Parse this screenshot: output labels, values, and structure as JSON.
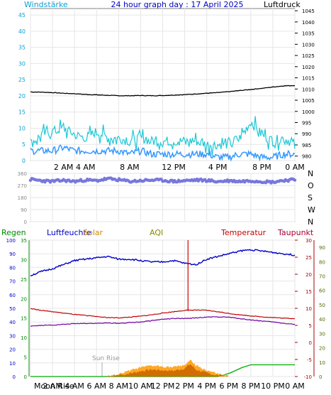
{
  "header": {
    "title": "24 hour graph day : 17 April 2025",
    "left_label": "Windstärke",
    "right_label": "Luftdruck"
  },
  "x_ticks_top": [
    "2 AM",
    "4 AM",
    "8 AM",
    "12 PM",
    "4 PM",
    "8 PM",
    "0 AM"
  ],
  "x_ticks_bottom": [
    "2 AM",
    "4 AM",
    "6 AM",
    "8 AM",
    "10 AM",
    "12 PM",
    "2 PM",
    "4 PM",
    "6 PM",
    "8 PM",
    "10 PM",
    "0 AM"
  ],
  "legend_bottom": {
    "regen": "Regen",
    "luftfeuchte": "Luftfeuchte",
    "solar": "Solar",
    "aqi": "AQI",
    "temperatur": "Temperatur",
    "taupunkt": "Taupunkt",
    "moon": "Moon Rise",
    "sunrise": "Sun Rise"
  },
  "colors": {
    "frame": "#808080",
    "grid": "#e6e6e6",
    "wind_label": "#0e9fd8",
    "pressure": "#000000",
    "gust": "#19c8d8",
    "wind": "#3399ff",
    "direction": "#7777dd",
    "humidity": "#0000c8",
    "temperature": "#c00000",
    "dewpoint": "#7000a0",
    "rain": "#00aa00",
    "solar": "#ff9900",
    "uv": "#cc6600",
    "spike": "#cc0000",
    "regen_axis": "#008800",
    "temp_axis": "#aa0000"
  },
  "chart_data": [
    {
      "type": "line",
      "name": "wind-pressure",
      "x_range_hours": [
        0,
        24
      ],
      "left_axis": {
        "title": "Windstarke",
        "ticks": [
          0,
          5,
          10,
          15,
          20,
          25,
          30,
          35,
          40,
          45
        ],
        "ylim": [
          0,
          47
        ]
      },
      "right_axis": {
        "title": "Luftdruck",
        "ticks": [
          980,
          985,
          990,
          995,
          1000,
          1005,
          1010,
          1015,
          1020,
          1025,
          1030,
          1035,
          1040,
          1045
        ],
        "ylim": [
          978,
          1046
        ]
      },
      "series": [
        {
          "key": "pressure",
          "axis": "right",
          "x": [
            0,
            1,
            2,
            3,
            4,
            5,
            6,
            7,
            8,
            9,
            10,
            11,
            12,
            13,
            14,
            15,
            16,
            17,
            18,
            19,
            20,
            21,
            22,
            23,
            24
          ],
          "values": [
            1008.7,
            1008.6,
            1008.4,
            1008.1,
            1007.9,
            1007.6,
            1007.4,
            1007.2,
            1007.0,
            1007.0,
            1007.1,
            1007.0,
            1007.1,
            1007.3,
            1007.5,
            1007.8,
            1008.1,
            1008.4,
            1008.8,
            1009.3,
            1009.8,
            1010.3,
            1010.9,
            1011.4,
            1011.6
          ]
        },
        {
          "key": "gust",
          "axis": "left",
          "x": [
            0,
            1,
            2,
            3,
            4,
            5,
            6,
            7,
            8,
            9,
            10,
            11,
            12,
            13,
            14,
            15,
            16,
            17,
            18,
            19,
            20,
            21,
            22,
            23,
            24
          ],
          "values": [
            5,
            8,
            9,
            10,
            8,
            7,
            9,
            7,
            7,
            6,
            7,
            6,
            6,
            6,
            6,
            6,
            5,
            5,
            5,
            7,
            12,
            8,
            6,
            7,
            5
          ]
        },
        {
          "key": "wind",
          "axis": "left",
          "x": [
            0,
            1,
            2,
            3,
            4,
            5,
            6,
            7,
            8,
            9,
            10,
            11,
            12,
            13,
            14,
            15,
            16,
            17,
            18,
            19,
            20,
            21,
            22,
            23,
            24
          ],
          "values": [
            3,
            3,
            3,
            4,
            3,
            3,
            3,
            3,
            3,
            2,
            3,
            2,
            2,
            2,
            2,
            2,
            2,
            1,
            1,
            2,
            2,
            1,
            1,
            2,
            2
          ]
        }
      ]
    },
    {
      "type": "scatter",
      "name": "wind-direction",
      "x_range_hours": [
        0,
        24
      ],
      "left_axis": {
        "ticks": [
          0,
          90,
          180,
          270,
          360
        ],
        "ylim": [
          0,
          360
        ]
      },
      "right_axis": {
        "ticks": [
          "N",
          "W",
          "S",
          "O",
          "N"
        ]
      },
      "series": [
        {
          "key": "direction",
          "x": [
            0,
            1,
            2,
            3,
            4,
            5,
            6,
            7,
            8,
            9,
            10,
            11,
            12,
            13,
            14,
            15,
            16,
            17,
            18,
            19,
            20,
            21,
            22,
            23,
            24
          ],
          "values": [
            315,
            305,
            300,
            308,
            300,
            310,
            305,
            320,
            312,
            300,
            305,
            310,
            308,
            300,
            305,
            310,
            308,
            298,
            305,
            300,
            305,
            300,
            295,
            308,
            312
          ]
        }
      ]
    },
    {
      "type": "line",
      "name": "weather-combined",
      "x_range_hours": [
        0,
        24
      ],
      "left_axis_humidity": {
        "ticks": [
          0,
          10,
          20,
          30,
          40,
          50,
          60,
          70,
          80,
          90,
          100
        ],
        "ylim": [
          0,
          100
        ]
      },
      "left_axis_rain": {
        "ticks": [
          0,
          5,
          10,
          15,
          20,
          25,
          30,
          35
        ],
        "ylim": [
          0,
          35
        ]
      },
      "right_axis_temperature": {
        "ticks": [
          -10,
          -5,
          0,
          5,
          10,
          15,
          20,
          25,
          30
        ],
        "ylim": [
          -10,
          30
        ]
      },
      "right_axis_aqi": {
        "ticks": [
          0,
          10,
          20,
          30,
          40,
          50,
          60,
          70,
          80,
          90
        ],
        "ylim": [
          0,
          95
        ]
      },
      "series": [
        {
          "key": "humidity",
          "axis": "humidity",
          "x": [
            0,
            1,
            2,
            3,
            4,
            5,
            6,
            7,
            8,
            9,
            10,
            11,
            12,
            13,
            14,
            15,
            16,
            17,
            18,
            19,
            20,
            21,
            22,
            23,
            24
          ],
          "values": [
            74,
            77,
            79,
            82,
            85,
            86,
            87,
            88,
            86,
            86,
            85,
            84,
            84,
            85,
            83,
            82,
            86,
            88,
            90,
            92,
            93,
            92,
            91,
            90,
            89
          ]
        },
        {
          "key": "temperature",
          "axis": "temperature",
          "x": [
            0,
            1,
            2,
            3,
            4,
            5,
            6,
            7,
            8,
            9,
            10,
            11,
            12,
            13,
            14,
            15,
            16,
            17,
            18,
            19,
            20,
            21,
            22,
            23,
            24
          ],
          "values": [
            10.0,
            9.4,
            9.0,
            8.6,
            8.2,
            7.9,
            7.6,
            7.3,
            7.2,
            7.4,
            7.7,
            8.1,
            8.6,
            9.0,
            9.4,
            9.5,
            9.4,
            9.0,
            8.5,
            8.1,
            7.8,
            7.5,
            7.3,
            7.1,
            7.0
          ]
        },
        {
          "key": "dewpoint",
          "axis": "temperature",
          "x": [
            0,
            1,
            2,
            3,
            4,
            5,
            6,
            7,
            8,
            9,
            10,
            11,
            12,
            13,
            14,
            15,
            16,
            17,
            18,
            19,
            20,
            21,
            22,
            23,
            24
          ],
          "values": [
            4.8,
            5.0,
            5.1,
            5.3,
            5.5,
            5.6,
            5.6,
            5.7,
            5.6,
            5.8,
            6.0,
            6.4,
            6.8,
            7.0,
            7.0,
            7.2,
            7.4,
            7.5,
            7.4,
            7.0,
            6.6,
            6.3,
            6.0,
            5.6,
            5.3
          ]
        },
        {
          "key": "rain",
          "axis": "rain",
          "x": [
            0,
            16,
            17,
            17.6,
            18.2,
            19.2,
            20.0,
            24
          ],
          "values": [
            0,
            0,
            0,
            0.4,
            1.0,
            2.3,
            3.0,
            3.0
          ]
        },
        {
          "key": "solar",
          "axis": "rain",
          "x": [
            0,
            7,
            8,
            9,
            10,
            11,
            12,
            13,
            14,
            14.5,
            15,
            16,
            17,
            18,
            24
          ],
          "values": [
            0,
            0,
            0.6,
            1.5,
            2.3,
            2.8,
            2.6,
            2.4,
            3.0,
            4.2,
            2.8,
            1.6,
            0.7,
            0,
            0
          ]
        },
        {
          "key": "uv",
          "axis": "rain",
          "x": [
            0,
            7,
            8,
            9,
            10,
            11,
            12,
            13,
            14,
            14.5,
            15,
            16,
            17,
            18,
            24
          ],
          "values": [
            0,
            0,
            0.3,
            0.8,
            1.4,
            1.8,
            1.6,
            1.5,
            2.1,
            3.2,
            1.8,
            0.9,
            0.3,
            0,
            0
          ]
        },
        {
          "key": "spike",
          "axis": "temperature",
          "x": [
            14.3
          ],
          "values": [
            30
          ]
        }
      ]
    }
  ]
}
